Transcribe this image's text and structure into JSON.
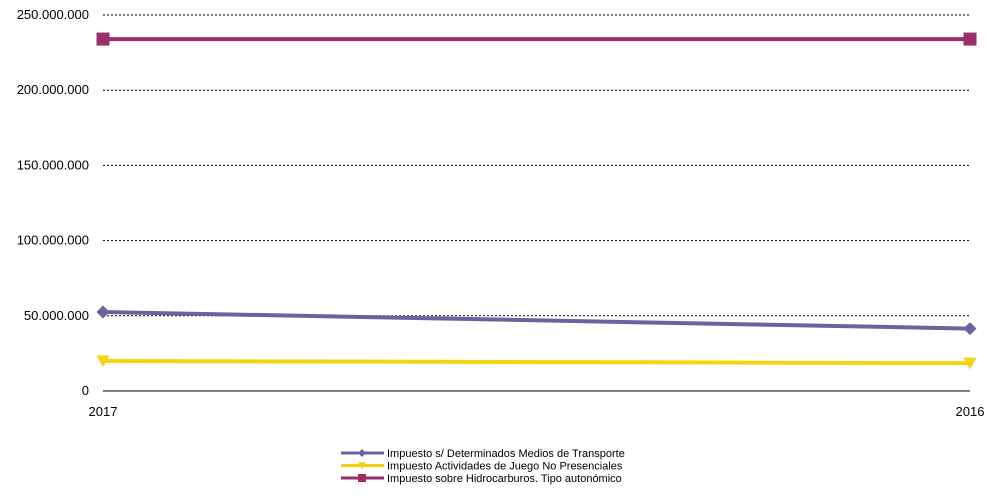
{
  "chart_data": {
    "type": "line",
    "title": "",
    "xlabel": "",
    "ylabel": "",
    "x": [
      "2017",
      "2016"
    ],
    "ylim": [
      0,
      250000000
    ],
    "y_ticks": [
      {
        "value": 0,
        "label": "0"
      },
      {
        "value": 50000000,
        "label": "50.000.000"
      },
      {
        "value": 100000000,
        "label": "100.000.000"
      },
      {
        "value": 150000000,
        "label": "150.000.000"
      },
      {
        "value": 200000000,
        "label": "200.000.000"
      },
      {
        "value": 250000000,
        "label": "250.000.000"
      }
    ],
    "grid": "horizontal-dotted",
    "legend_position": "bottom-center",
    "series": [
      {
        "name": "Impuesto s/ Determinados Medios de Transporte",
        "values": [
          52500000,
          41500000
        ],
        "color": "#6b63a0",
        "marker": "diamond"
      },
      {
        "name": "Impuesto Actividades de Juego No Presenciales",
        "values": [
          20000000,
          18500000
        ],
        "color": "#f5d313",
        "marker": "triangle-down"
      },
      {
        "name": "Impuesto sobre Hidrocarburos. Tipo autonómico",
        "values": [
          234000000,
          234000000
        ],
        "color": "#9c2e6a",
        "marker": "square"
      }
    ]
  }
}
